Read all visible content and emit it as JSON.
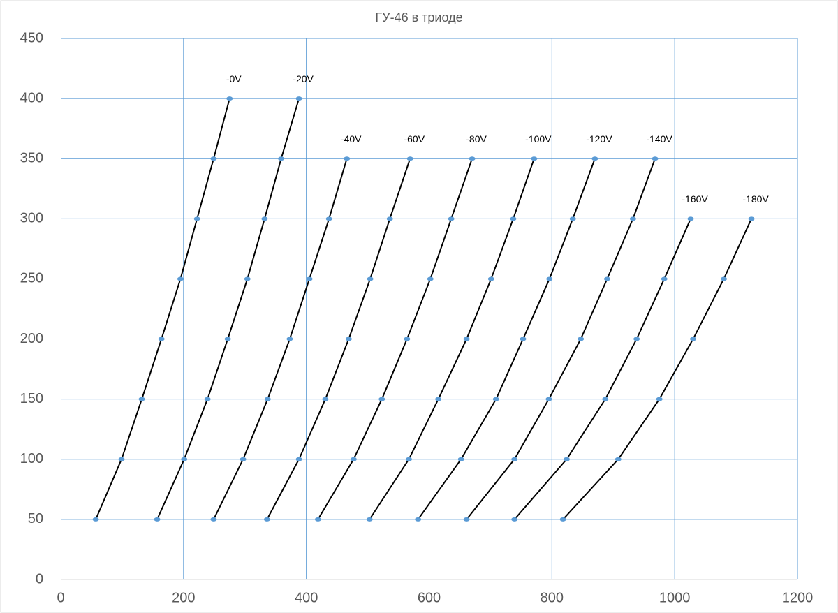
{
  "chart_data": {
    "type": "scatter-line",
    "title": "ГУ-46 в триоде",
    "xlim": [
      0,
      1200
    ],
    "xticks": [
      0,
      200,
      400,
      600,
      800,
      1000,
      1200
    ],
    "ylim": [
      0,
      450
    ],
    "yticks": [
      0,
      50,
      100,
      150,
      200,
      250,
      300,
      350,
      400,
      450
    ],
    "grid": true,
    "grid_color": "#5b9bd5",
    "line_color": "#000000",
    "marker_color": "#5b9bd5",
    "series": [
      {
        "name": "-0V",
        "x": [
          57,
          99,
          132,
          164,
          195,
          222,
          249,
          275
        ],
        "values": [
          50,
          100,
          150,
          200,
          250,
          300,
          350,
          400
        ]
      },
      {
        "name": "-20V",
        "x": [
          157,
          201,
          239,
          272,
          304,
          332,
          359,
          388
        ],
        "values": [
          50,
          100,
          150,
          200,
          250,
          300,
          350,
          400
        ]
      },
      {
        "name": "-40V",
        "x": [
          249,
          297,
          337,
          373,
          405,
          437,
          466
        ],
        "values": [
          50,
          100,
          150,
          200,
          250,
          300,
          350
        ]
      },
      {
        "name": "-60V",
        "x": [
          336,
          388,
          431,
          469,
          504,
          536,
          569
        ],
        "values": [
          50,
          100,
          150,
          200,
          250,
          300,
          350
        ]
      },
      {
        "name": "-80V",
        "x": [
          419,
          477,
          523,
          564,
          602,
          636,
          670
        ],
        "values": [
          50,
          100,
          150,
          200,
          250,
          300,
          350
        ]
      },
      {
        "name": "-100V",
        "x": [
          503,
          567,
          615,
          661,
          701,
          737,
          771
        ],
        "values": [
          50,
          100,
          150,
          200,
          250,
          300,
          350
        ]
      },
      {
        "name": "-120V",
        "x": [
          582,
          652,
          709,
          753,
          796,
          834,
          870
        ],
        "values": [
          50,
          100,
          150,
          200,
          250,
          300,
          350
        ]
      },
      {
        "name": "-140V",
        "x": [
          661,
          739,
          795,
          847,
          890,
          932,
          968
        ],
        "values": [
          50,
          100,
          150,
          200,
          250,
          300,
          350
        ]
      },
      {
        "name": "-160V",
        "x": [
          739,
          824,
          887,
          938,
          983,
          1026
        ],
        "values": [
          50,
          100,
          150,
          200,
          250,
          300
        ]
      },
      {
        "name": "-180V",
        "x": [
          818,
          908,
          975,
          1030,
          1080,
          1125
        ],
        "values": [
          50,
          100,
          150,
          200,
          250,
          300
        ]
      }
    ]
  }
}
